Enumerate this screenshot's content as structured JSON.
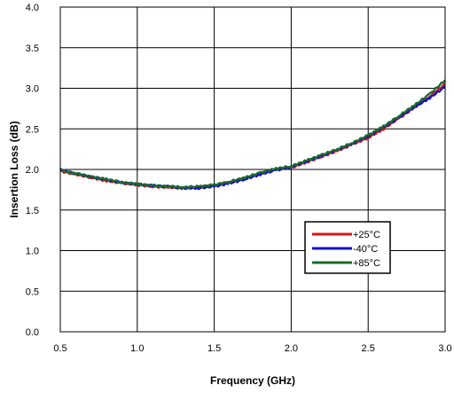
{
  "chart_data": {
    "type": "line",
    "title": "",
    "xlabel": "Frequency (GHz)",
    "ylabel": "Insertion Loss (dB)",
    "xlim": [
      0.5,
      3.0
    ],
    "ylim": [
      0.0,
      4.0
    ],
    "xticks": [
      "0.5",
      "1.0",
      "1.5",
      "2.0",
      "2.5",
      "3.0"
    ],
    "yticks": [
      "0.0",
      "0.5",
      "1.0",
      "1.5",
      "2.0",
      "2.5",
      "3.0",
      "3.5",
      "4.0"
    ],
    "grid": true,
    "legend_position": "lower-right",
    "x": [
      0.5,
      0.6,
      0.7,
      0.8,
      0.9,
      1.0,
      1.1,
      1.2,
      1.3,
      1.4,
      1.5,
      1.6,
      1.7,
      1.8,
      1.9,
      2.0,
      2.1,
      2.2,
      2.3,
      2.4,
      2.5,
      2.6,
      2.7,
      2.8,
      2.9,
      3.0
    ],
    "series": [
      {
        "name": "+25°C",
        "color": "#dd1111",
        "values": [
          1.98,
          1.94,
          1.9,
          1.86,
          1.83,
          1.81,
          1.79,
          1.78,
          1.77,
          1.78,
          1.8,
          1.84,
          1.89,
          1.95,
          2.0,
          2.02,
          2.09,
          2.16,
          2.23,
          2.31,
          2.39,
          2.5,
          2.63,
          2.76,
          2.9,
          3.05
        ]
      },
      {
        "name": "-40°C",
        "color": "#1111cc",
        "values": [
          2.0,
          1.95,
          1.91,
          1.87,
          1.84,
          1.82,
          1.8,
          1.79,
          1.77,
          1.77,
          1.79,
          1.83,
          1.88,
          1.94,
          1.99,
          2.03,
          2.1,
          2.17,
          2.24,
          2.32,
          2.41,
          2.52,
          2.64,
          2.77,
          2.88,
          3.02
        ]
      },
      {
        "name": "+85°C",
        "color": "#1a6b2a",
        "values": [
          1.99,
          1.95,
          1.91,
          1.88,
          1.84,
          1.82,
          1.8,
          1.79,
          1.78,
          1.79,
          1.81,
          1.85,
          1.9,
          1.96,
          2.01,
          2.04,
          2.11,
          2.18,
          2.25,
          2.33,
          2.42,
          2.53,
          2.66,
          2.79,
          2.93,
          3.1
        ]
      }
    ]
  }
}
